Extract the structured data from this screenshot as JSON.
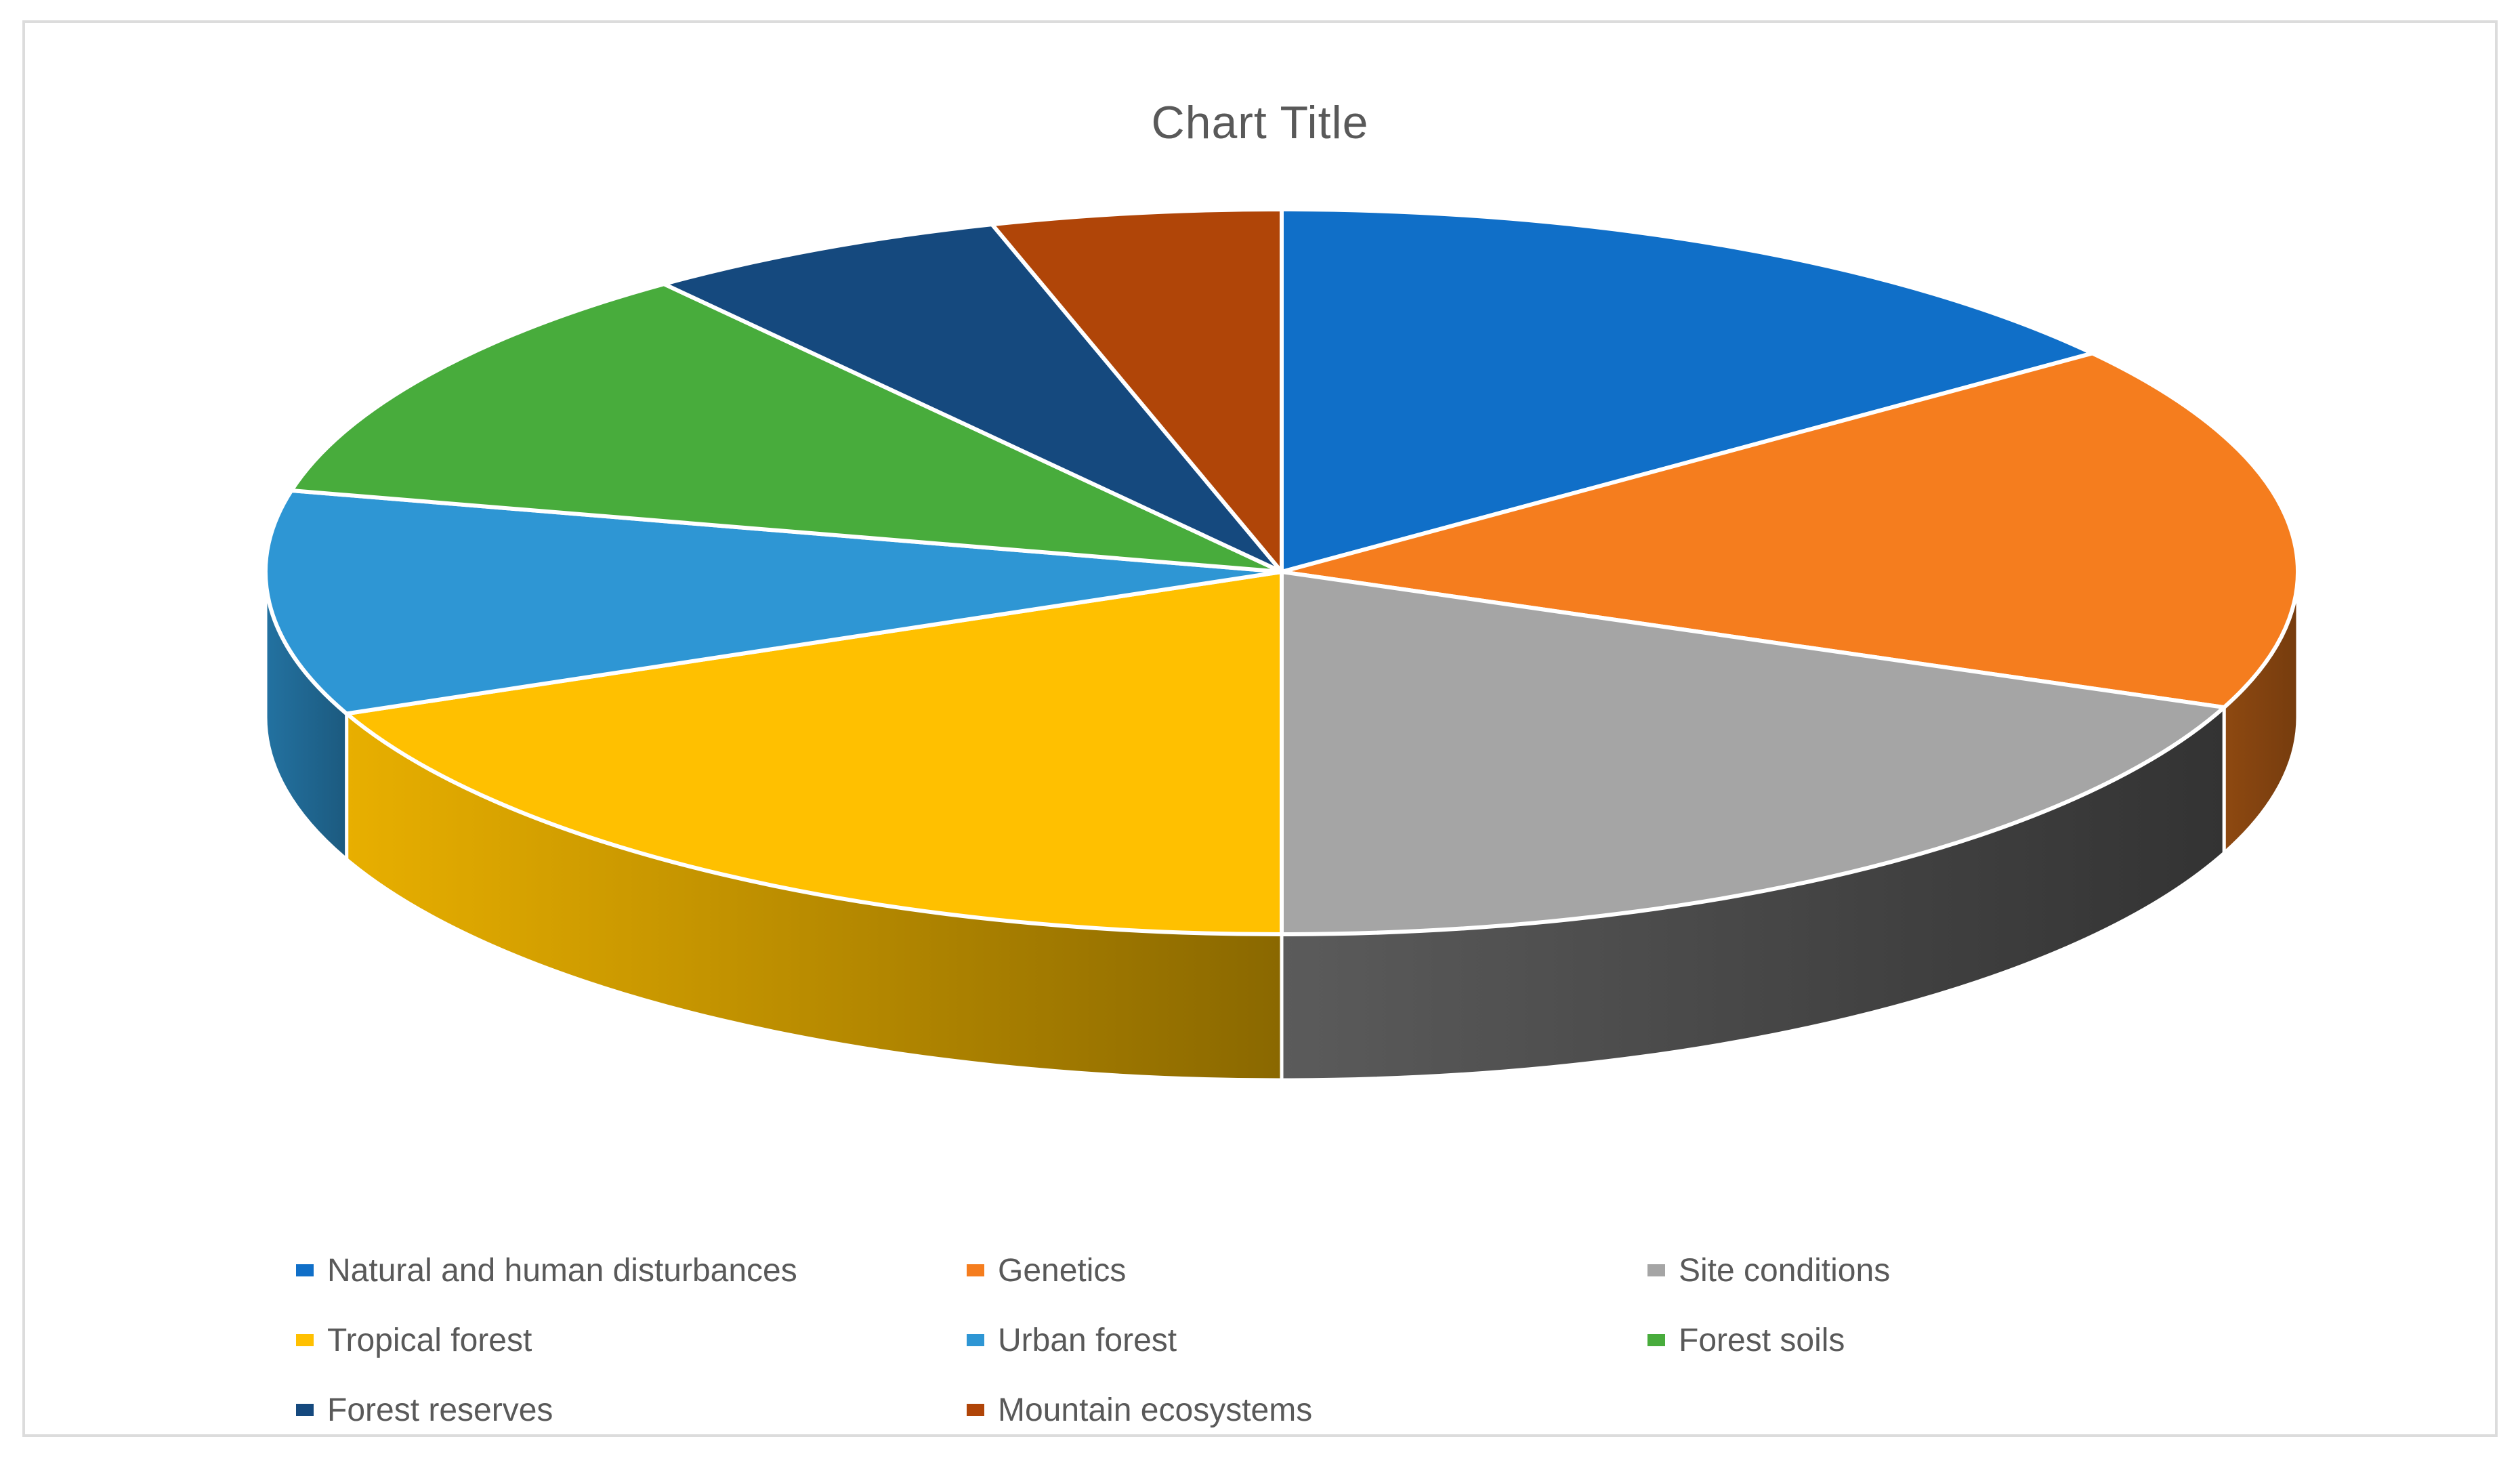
{
  "title": "Chart Title",
  "chart_data": {
    "type": "pie",
    "projection": "3d",
    "title": "Chart Title",
    "categories": [
      "Natural and human disturbances",
      "Genetics",
      "Site conditions",
      "Tropical forest",
      "Urban forest",
      "Forest soils",
      "Forest reserves",
      "Mountain ecosystems"
    ],
    "values": [
      14.7,
      16.4,
      18.9,
      18.6,
      10.0,
      11.0,
      5.8,
      4.6
    ],
    "values_note": "percent shares estimated from slice angles; no data labels are shown in the chart",
    "colors": [
      "#106FC8",
      "#F57D1E",
      "#A5A5A5",
      "#FFC000",
      "#2E96D4",
      "#48AC3C",
      "#15497E",
      "#B04508"
    ],
    "start_angle_deg": 0,
    "direction": "clockwise",
    "legend_position": "bottom",
    "data_labels": false,
    "slice_border_color": "#FFFFFF"
  },
  "frame": {
    "border_color": "#DCDCDC",
    "background": "#FFFFFF"
  },
  "text_color": "#595959"
}
